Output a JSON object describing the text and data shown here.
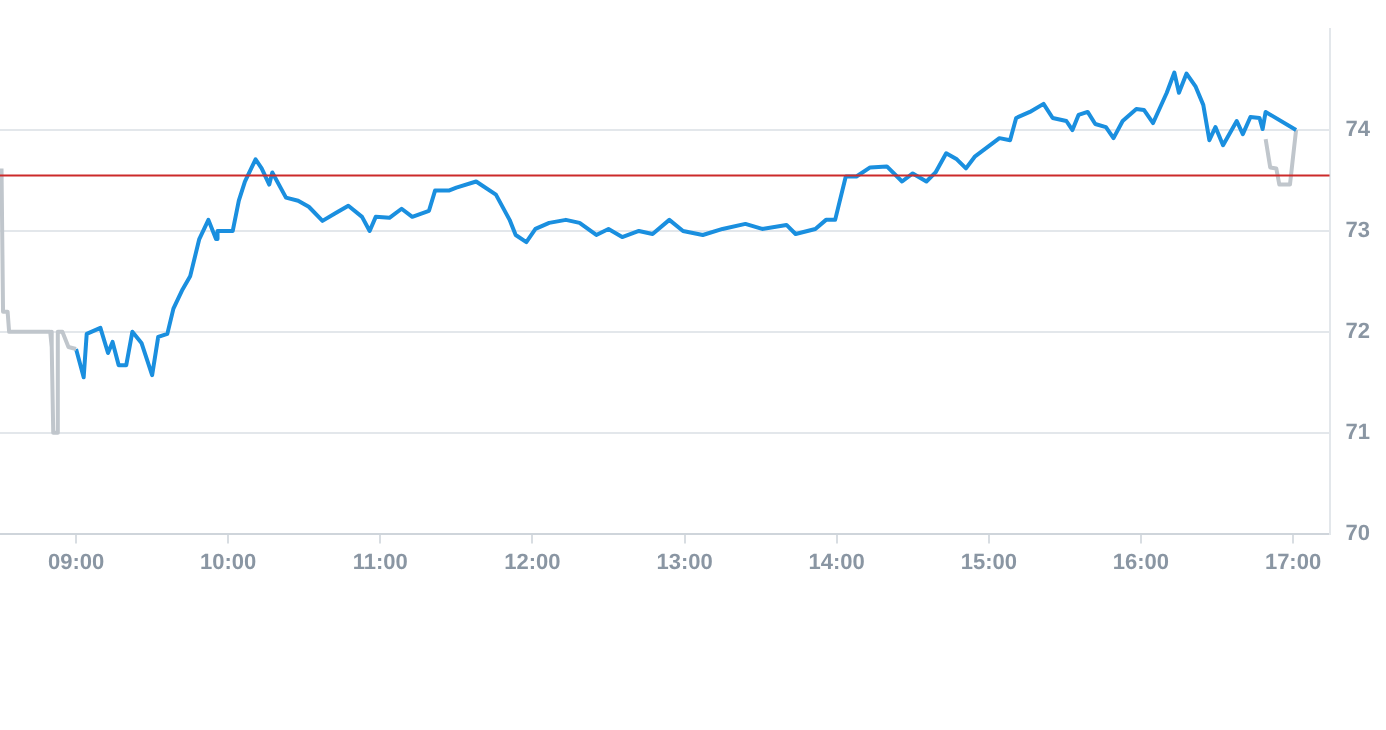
{
  "chart_data": {
    "type": "line",
    "xlim": [
      8.5,
      17.24
    ],
    "ylim": [
      70,
      75
    ],
    "xticks": [
      {
        "value": 9,
        "label": "09:00"
      },
      {
        "value": 10,
        "label": "10:00"
      },
      {
        "value": 11,
        "label": "11:00"
      },
      {
        "value": 12,
        "label": "12:00"
      },
      {
        "value": 13,
        "label": "13:00"
      },
      {
        "value": 14,
        "label": "14:00"
      },
      {
        "value": 15,
        "label": "15:00"
      },
      {
        "value": 16,
        "label": "16:00"
      },
      {
        "value": 17,
        "label": "17:00"
      }
    ],
    "yticks": [
      70,
      71,
      72,
      73,
      74
    ],
    "grid": "y",
    "legend": false,
    "marker": "none",
    "line_style": "solid",
    "ref_lines": [
      {
        "axis": "y",
        "value": 73.55,
        "color": "#cc2a2a"
      }
    ],
    "series": [
      {
        "color": "#c0c6cc",
        "x": [
          8.51,
          8.52,
          8.55,
          8.56,
          8.83,
          8.84,
          8.85,
          8.87,
          8.88,
          8.91,
          8.95,
          9.0
        ],
        "values": [
          73.62,
          72.2,
          72.2,
          72.0,
          72.0,
          71.85,
          71.0,
          71.0,
          72.0,
          72.0,
          71.85,
          71.83
        ]
      },
      {
        "color": "#1a8fdf",
        "x": [
          9.0,
          9.05,
          9.07,
          9.16,
          9.21,
          9.24,
          9.28,
          9.33,
          9.37,
          9.43,
          9.5,
          9.54,
          9.6,
          9.64,
          9.7,
          9.75,
          9.81,
          9.87,
          9.92,
          9.93,
          10.03,
          10.07,
          10.11,
          10.18,
          10.22,
          10.27,
          10.29,
          10.38,
          10.46,
          10.53,
          10.62,
          10.71,
          10.79,
          10.88,
          10.93,
          10.97,
          11.06,
          11.14,
          11.21,
          11.32,
          11.36,
          11.45,
          11.5,
          11.63,
          11.76,
          11.85,
          11.89,
          11.96,
          12.02,
          12.11,
          12.22,
          12.31,
          12.42,
          12.5,
          12.59,
          12.7,
          12.79,
          12.9,
          12.99,
          13.12,
          13.25,
          13.4,
          13.51,
          13.67,
          13.73,
          13.86,
          13.93,
          13.99,
          14.06,
          14.13,
          14.22,
          14.33,
          14.43,
          14.5,
          14.59,
          14.65,
          14.72,
          14.79,
          14.85,
          14.91,
          15.0,
          15.07,
          15.14,
          15.18,
          15.27,
          15.36,
          15.42,
          15.51,
          15.55,
          15.59,
          15.65,
          15.7,
          15.77,
          15.82,
          15.88,
          15.97,
          16.02,
          16.08,
          16.17,
          16.22,
          16.25,
          16.3,
          16.36,
          16.41,
          16.45,
          16.49,
          16.54,
          16.63,
          16.67,
          16.72,
          16.78,
          16.8,
          16.82,
          17.02
        ],
        "values": [
          71.83,
          71.55,
          71.98,
          72.04,
          71.79,
          71.9,
          71.67,
          71.67,
          72.0,
          71.89,
          71.57,
          71.95,
          71.98,
          72.23,
          72.42,
          72.55,
          72.92,
          73.11,
          72.92,
          73.0,
          73.0,
          73.3,
          73.49,
          73.71,
          73.62,
          73.46,
          73.58,
          73.33,
          73.3,
          73.24,
          73.1,
          73.18,
          73.25,
          73.14,
          73.0,
          73.14,
          73.13,
          73.22,
          73.14,
          73.2,
          73.4,
          73.4,
          73.43,
          73.49,
          73.36,
          73.11,
          72.96,
          72.89,
          73.02,
          73.08,
          73.11,
          73.08,
          72.96,
          73.02,
          72.94,
          73.0,
          72.97,
          73.11,
          73.0,
          72.96,
          73.02,
          73.07,
          73.02,
          73.06,
          72.97,
          73.02,
          73.11,
          73.11,
          73.54,
          73.54,
          73.63,
          73.64,
          73.49,
          73.57,
          73.49,
          73.58,
          73.77,
          73.71,
          73.62,
          73.74,
          73.84,
          73.92,
          73.9,
          74.12,
          74.18,
          74.26,
          74.12,
          74.09,
          74.0,
          74.15,
          74.18,
          74.06,
          74.03,
          73.92,
          74.09,
          74.21,
          74.2,
          74.07,
          74.37,
          74.57,
          74.37,
          74.56,
          74.43,
          74.25,
          73.9,
          74.03,
          73.85,
          74.09,
          73.96,
          74.13,
          74.12,
          74.01,
          74.18,
          74.0
        ]
      },
      {
        "color": "#c0c6cc",
        "x": [
          16.82,
          16.85,
          16.89,
          16.91,
          16.98,
          17.02
        ],
        "values": [
          73.91,
          73.63,
          73.62,
          73.46,
          73.46,
          74.0
        ]
      }
    ]
  }
}
